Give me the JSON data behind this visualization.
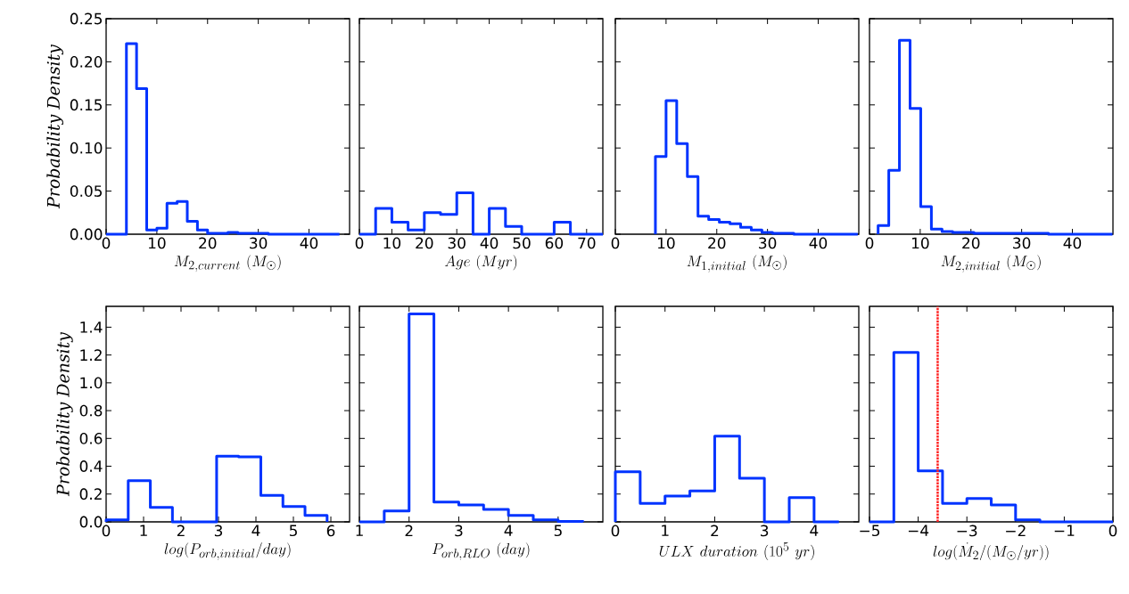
{
  "chart_data": [
    {
      "type": "histogram",
      "ylabel": "Probability Density",
      "xlabel": "M_{2,current}\\ (M_{\\odot})",
      "color": "#0033ff",
      "bins": [
        0,
        2,
        4,
        6,
        8,
        10,
        12,
        14,
        16,
        18,
        20,
        22,
        24,
        26,
        28,
        30,
        32,
        34,
        36,
        38,
        40,
        42,
        44,
        46
      ],
      "values": [
        0,
        0,
        0.221,
        0.169,
        0.005,
        0.007,
        0.036,
        0.038,
        0.015,
        0.005,
        0.001,
        0.001,
        0.002,
        0.001,
        0.001,
        0.001,
        0,
        0,
        0,
        0,
        0,
        0,
        0
      ],
      "xlim": [
        0,
        48
      ],
      "ylim": [
        0,
        0.25
      ],
      "xticks": [
        0,
        10,
        20,
        30,
        40
      ],
      "yticks": [
        {
          "value": 0,
          "label": "0.00"
        },
        {
          "value": 0.05,
          "label": "0.05"
        },
        {
          "value": 0.1,
          "label": "0.10"
        },
        {
          "value": 0.15,
          "label": "0.15"
        },
        {
          "value": 0.2,
          "label": "0.20"
        },
        {
          "value": 0.25,
          "label": "0.25"
        }
      ]
    },
    {
      "type": "histogram",
      "xlabel": "Age\\ (Myr)",
      "color": "#0033ff",
      "bins": [
        0,
        5,
        10,
        15,
        20,
        25,
        30,
        35,
        40,
        45,
        50,
        55,
        60,
        65,
        70,
        75
      ],
      "values": [
        0,
        0.03,
        0.014,
        0.005,
        0.025,
        0.023,
        0.048,
        0,
        0.03,
        0.009,
        0,
        0,
        0.014,
        0,
        0
      ],
      "xlim": [
        0,
        75
      ],
      "ylim": [
        0,
        0.25
      ],
      "xticks": [
        0,
        10,
        20,
        30,
        40,
        50,
        60,
        70
      ],
      "yticks": [
        0,
        0.05,
        0.1,
        0.15,
        0.2,
        0.25
      ],
      "tick_labels": "x"
    },
    {
      "type": "histogram",
      "xlabel": "M_{1,initial}\\ (M_{\\odot})",
      "color": "#0033ff",
      "bins": [
        7.9,
        10,
        12.1,
        14.2,
        16.3,
        18.4,
        20.5,
        22.6,
        24.7,
        26.8,
        28.9,
        31,
        33.1,
        35.2,
        37.3,
        39.4,
        41.5,
        43.6,
        45.7,
        47.8
      ],
      "values": [
        0.09,
        0.155,
        0.105,
        0.067,
        0.021,
        0.017,
        0.014,
        0.012,
        0.008,
        0.005,
        0.002,
        0.001,
        0.001,
        0,
        0,
        0,
        0,
        0,
        0
      ],
      "xlim": [
        0,
        48
      ],
      "ylim": [
        0,
        0.25
      ],
      "xticks": [
        0,
        10,
        20,
        30,
        40
      ],
      "yticks": [
        0,
        0.05,
        0.1,
        0.15,
        0.2,
        0.25
      ],
      "tick_labels": "x"
    },
    {
      "type": "histogram",
      "xlabel": "M_{2,initial}\\ (M_{\\odot})",
      "color": "#0033ff",
      "bins": [
        1.7,
        3.8,
        5.9,
        8.0,
        10.1,
        12.2,
        14.3,
        16.4,
        18.5,
        20.6,
        22.7,
        24.8,
        26.9,
        29,
        31.1,
        33.2,
        35.3,
        37.4,
        39.5,
        41.6,
        43.7,
        45.8,
        47.9
      ],
      "values": [
        0.01,
        0.074,
        0.225,
        0.146,
        0.032,
        0.006,
        0.003,
        0.002,
        0.002,
        0.001,
        0.001,
        0.001,
        0.001,
        0.001,
        0.001,
        0.001,
        0,
        0,
        0,
        0,
        0,
        0
      ],
      "xlim": [
        0,
        48
      ],
      "ylim": [
        0,
        0.25
      ],
      "xticks": [
        0,
        10,
        20,
        30,
        40
      ],
      "yticks": [
        0,
        0.05,
        0.1,
        0.15,
        0.2,
        0.25
      ],
      "tick_labels": "x"
    },
    {
      "type": "histogram",
      "ylabel": "Probability Density",
      "xlabel": "log(P_{orb,initial}/day)",
      "color": "#0033ff",
      "bins": [
        0,
        0.59,
        1.18,
        1.77,
        2.36,
        2.95,
        3.54,
        4.13,
        4.72,
        5.31,
        5.9
      ],
      "values": [
        0.015,
        0.296,
        0.104,
        0,
        0,
        0.473,
        0.467,
        0.19,
        0.111,
        0.047
      ],
      "xlim": [
        0,
        6.5
      ],
      "ylim": [
        0,
        1.55
      ],
      "xticks": [
        0,
        1,
        2,
        3,
        4,
        5,
        6
      ],
      "yticks": [
        {
          "value": 0,
          "label": "0.0"
        },
        {
          "value": 0.2,
          "label": "0.2"
        },
        {
          "value": 0.4,
          "label": "0.4"
        },
        {
          "value": 0.6,
          "label": "0.6"
        },
        {
          "value": 0.8,
          "label": "0.8"
        },
        {
          "value": 1.0,
          "label": "1.0"
        },
        {
          "value": 1.2,
          "label": "1.2"
        },
        {
          "value": 1.4,
          "label": "1.4"
        }
      ]
    },
    {
      "type": "histogram",
      "xlabel": "P_{orb,RLO}\\ (day)",
      "color": "#0033ff",
      "bins": [
        1.0,
        1.5,
        2.0,
        2.5,
        3.0,
        3.5,
        4.0,
        4.5,
        5.0,
        5.5
      ],
      "values": [
        0,
        0.079,
        1.496,
        0.143,
        0.121,
        0.09,
        0.047,
        0.015,
        0.003
      ],
      "xlim": [
        1,
        5.9
      ],
      "ylim": [
        0,
        1.55
      ],
      "xticks": [
        1,
        2,
        3,
        4,
        5
      ],
      "yticks": [
        0,
        0.2,
        0.4,
        0.6,
        0.8,
        1.0,
        1.2,
        1.4
      ],
      "tick_labels": "x"
    },
    {
      "type": "histogram",
      "xlabel": "ULX\\ duration\\ (10^{5}\\ yr)",
      "color": "#0033ff",
      "bins": [
        0,
        0.5,
        1.0,
        1.5,
        2.0,
        2.5,
        3.0,
        3.5,
        4.0,
        4.5
      ],
      "values": [
        0.36,
        0.132,
        0.185,
        0.222,
        0.616,
        0.313,
        0,
        0.175,
        0
      ],
      "xlim": [
        0,
        4.9
      ],
      "ylim": [
        0,
        1.55
      ],
      "xticks": [
        0,
        1,
        2,
        3,
        4
      ],
      "yticks": [
        0,
        0.2,
        0.4,
        0.6,
        0.8,
        1.0,
        1.2,
        1.4
      ],
      "tick_labels": "x"
    },
    {
      "type": "histogram",
      "xlabel": "log(\\dot{M}_{2}/(M_{\\odot}/yr))",
      "color": "#0033ff",
      "bins": [
        -5,
        -4.5,
        -4,
        -3.5,
        -3,
        -2.5,
        -2,
        -1.5,
        -1,
        -0.5,
        0
      ],
      "values": [
        0,
        1.219,
        0.367,
        0.132,
        0.168,
        0.121,
        0.015,
        0,
        0,
        0
      ],
      "xlim": [
        -5,
        0
      ],
      "ylim": [
        0,
        1.55
      ],
      "xticks": [
        {
          "value": -5,
          "label": "−5"
        },
        {
          "value": -4,
          "label": "−4"
        },
        {
          "value": -3,
          "label": "−3"
        },
        {
          "value": -2,
          "label": "−2"
        },
        {
          "value": -1,
          "label": "−1"
        },
        0
      ],
      "yticks": [
        0,
        0.2,
        0.4,
        0.6,
        0.8,
        1.0,
        1.2,
        1.4
      ],
      "tick_labels": "x",
      "ref_lines": [
        {
          "axis": "x",
          "value": -3.6,
          "color": "#ff2020",
          "line_style": "dotted"
        }
      ]
    }
  ]
}
